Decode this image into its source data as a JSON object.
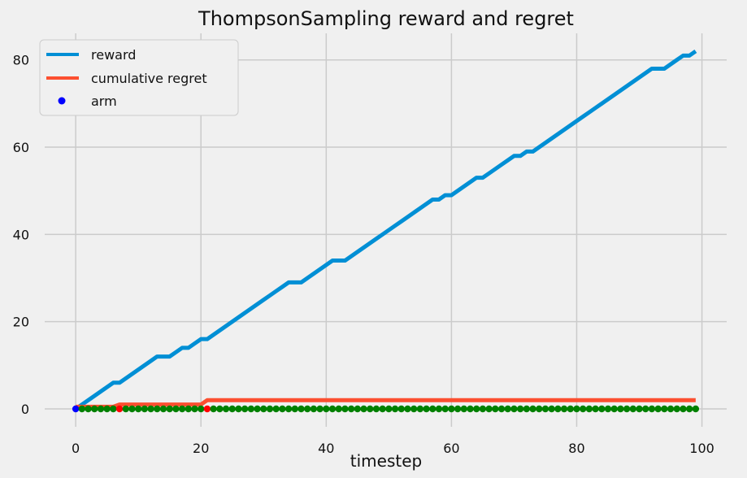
{
  "chart_data": {
    "type": "line",
    "title": "ThompsonSampling reward and regret",
    "xlabel": "timestep",
    "ylabel": "",
    "xlim": [
      -4.95,
      103.95
    ],
    "ylim": [
      -4.1,
      86.1
    ],
    "xticks": [
      0,
      20,
      40,
      60,
      80,
      100
    ],
    "yticks": [
      0,
      20,
      40,
      60,
      80
    ],
    "grid": true,
    "legend": "top-left",
    "background": "#f0f0f0",
    "grid_color": "#cbcbcb",
    "series": [
      {
        "name": "reward",
        "kind": "line",
        "color": "#008fd5",
        "y": [
          0,
          1,
          2,
          3,
          4,
          5,
          6,
          6,
          7,
          8,
          9,
          10,
          11,
          12,
          12,
          12,
          13,
          14,
          14,
          15,
          16,
          16,
          17,
          18,
          19,
          20,
          21,
          22,
          23,
          24,
          25,
          26,
          27,
          28,
          29,
          29,
          29,
          30,
          31,
          32,
          33,
          34,
          34,
          34,
          35,
          36,
          37,
          38,
          39,
          40,
          41,
          42,
          43,
          44,
          45,
          46,
          47,
          48,
          48,
          49,
          49,
          50,
          51,
          52,
          53,
          53,
          54,
          55,
          56,
          57,
          58,
          58,
          59,
          59,
          60,
          61,
          62,
          63,
          64,
          65,
          66,
          67,
          68,
          69,
          70,
          71,
          72,
          73,
          74,
          75,
          76,
          77,
          78,
          78,
          78,
          79,
          80,
          81,
          81,
          82
        ]
      },
      {
        "name": "cumulative regret",
        "kind": "line",
        "color": "#fc4f30",
        "y": [
          0.5,
          0.5,
          0.5,
          0.5,
          0.5,
          0.5,
          0.5,
          1,
          1,
          1,
          1,
          1,
          1,
          1,
          1,
          1,
          1,
          1,
          1,
          1,
          1,
          2,
          2,
          2,
          2,
          2,
          2,
          2,
          2,
          2,
          2,
          2,
          2,
          2,
          2,
          2,
          2,
          2,
          2,
          2,
          2,
          2,
          2,
          2,
          2,
          2,
          2,
          2,
          2,
          2,
          2,
          2,
          2,
          2,
          2,
          2,
          2,
          2,
          2,
          2,
          2,
          2,
          2,
          2,
          2,
          2,
          2,
          2,
          2,
          2,
          2,
          2,
          2,
          2,
          2,
          2,
          2,
          2,
          2,
          2,
          2,
          2,
          2,
          2,
          2,
          2,
          2,
          2,
          2,
          2,
          2,
          2,
          2,
          2,
          2,
          2,
          2,
          2,
          2,
          2
        ]
      },
      {
        "name": "arm",
        "kind": "scatter",
        "color": "#0000ff",
        "y": [
          0,
          0,
          0,
          0,
          0,
          0,
          0,
          0,
          0,
          0,
          0,
          0,
          0,
          0,
          0,
          0,
          0,
          0,
          0,
          0,
          0,
          0,
          0,
          0,
          0,
          0,
          0,
          0,
          0,
          0,
          0,
          0,
          0,
          0,
          0,
          0,
          0,
          0,
          0,
          0,
          0,
          0,
          0,
          0,
          0,
          0,
          0,
          0,
          0,
          0,
          0,
          0,
          0,
          0,
          0,
          0,
          0,
          0,
          0,
          0,
          0,
          0,
          0,
          0,
          0,
          0,
          0,
          0,
          0,
          0,
          0,
          0,
          0,
          0,
          0,
          0,
          0,
          0,
          0,
          0,
          0,
          0,
          0,
          0,
          0,
          0,
          0,
          0,
          0,
          0,
          0,
          0,
          0,
          0,
          0,
          0,
          0,
          0,
          0,
          0
        ],
        "point_colors": [
          "#0000ff",
          "#008000",
          "#008000",
          "#008000",
          "#008000",
          "#008000",
          "#008000",
          "#ff0000",
          "#008000",
          "#008000",
          "#008000",
          "#008000",
          "#008000",
          "#008000",
          "#008000",
          "#008000",
          "#008000",
          "#008000",
          "#008000",
          "#008000",
          "#008000",
          "#ff0000",
          "#008000",
          "#008000",
          "#008000",
          "#008000",
          "#008000",
          "#008000",
          "#008000",
          "#008000",
          "#008000",
          "#008000",
          "#008000",
          "#008000",
          "#008000",
          "#008000",
          "#008000",
          "#008000",
          "#008000",
          "#008000",
          "#008000",
          "#008000",
          "#008000",
          "#008000",
          "#008000",
          "#008000",
          "#008000",
          "#008000",
          "#008000",
          "#008000",
          "#008000",
          "#008000",
          "#008000",
          "#008000",
          "#008000",
          "#008000",
          "#008000",
          "#008000",
          "#008000",
          "#008000",
          "#008000",
          "#008000",
          "#008000",
          "#008000",
          "#008000",
          "#008000",
          "#008000",
          "#008000",
          "#008000",
          "#008000",
          "#008000",
          "#008000",
          "#008000",
          "#008000",
          "#008000",
          "#008000",
          "#008000",
          "#008000",
          "#008000",
          "#008000",
          "#008000",
          "#008000",
          "#008000",
          "#008000",
          "#008000",
          "#008000",
          "#008000",
          "#008000",
          "#008000",
          "#008000",
          "#008000",
          "#008000",
          "#008000",
          "#008000",
          "#008000",
          "#008000",
          "#008000",
          "#008000",
          "#008000",
          "#008000"
        ]
      }
    ]
  }
}
